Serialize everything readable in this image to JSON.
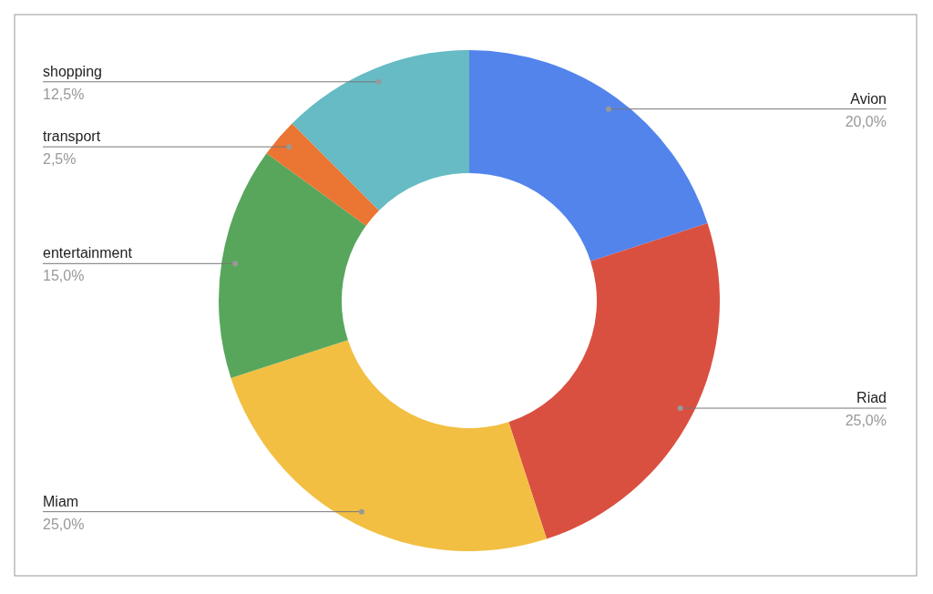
{
  "chart_data": {
    "type": "donut",
    "categories": [
      "Avion",
      "Riad",
      "Miam",
      "entertainment",
      "transport",
      "shopping"
    ],
    "values": [
      20,
      25,
      25,
      15,
      2.5,
      12.5
    ],
    "colors": [
      "#5384ec",
      "#d95040",
      "#f2bf42",
      "#58a65c",
      "#eb7532",
      "#66bbc4"
    ],
    "value_labels": [
      "20,0%",
      "25,0%",
      "25,0%",
      "15,0%",
      "2,5%",
      "12,5%"
    ]
  }
}
